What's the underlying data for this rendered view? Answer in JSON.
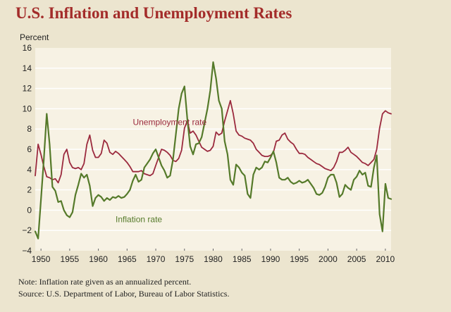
{
  "chart_data": {
    "type": "line",
    "title": "U.S. Inflation and Unemployment Rates",
    "ylabel": "Percent",
    "xlabel": "",
    "xlim": [
      1949,
      2011
    ],
    "ylim": [
      -4,
      16
    ],
    "x_ticks": [
      "1950",
      "1955",
      "1960",
      "1965",
      "1970",
      "1975",
      "1980",
      "1985",
      "1990",
      "1995",
      "2000",
      "2005",
      "2010"
    ],
    "y_ticks": [
      "16",
      "14",
      "12",
      "10",
      "8",
      "6",
      "4",
      "2",
      "0",
      "−2",
      "−4"
    ],
    "grid": "horizontal",
    "series": [
      {
        "name": "Unemployment rate",
        "color": "#9b2a3e",
        "points": [
          [
            1949.0,
            3.4
          ],
          [
            1949.5,
            6.5
          ],
          [
            1950.0,
            5.5
          ],
          [
            1950.5,
            4.3
          ],
          [
            1951.0,
            3.3
          ],
          [
            1951.5,
            3.2
          ],
          [
            1952.0,
            3.0
          ],
          [
            1952.5,
            3.1
          ],
          [
            1953.0,
            2.7
          ],
          [
            1953.5,
            3.5
          ],
          [
            1954.0,
            5.5
          ],
          [
            1954.5,
            6.0
          ],
          [
            1955.0,
            4.7
          ],
          [
            1955.5,
            4.2
          ],
          [
            1956.0,
            4.1
          ],
          [
            1956.5,
            4.2
          ],
          [
            1957.0,
            4.0
          ],
          [
            1957.5,
            4.6
          ],
          [
            1958.0,
            6.5
          ],
          [
            1958.5,
            7.4
          ],
          [
            1959.0,
            5.9
          ],
          [
            1959.5,
            5.2
          ],
          [
            1960.0,
            5.2
          ],
          [
            1960.5,
            5.6
          ],
          [
            1961.0,
            6.9
          ],
          [
            1961.5,
            6.6
          ],
          [
            1962.0,
            5.7
          ],
          [
            1962.5,
            5.5
          ],
          [
            1963.0,
            5.8
          ],
          [
            1963.5,
            5.6
          ],
          [
            1964.0,
            5.3
          ],
          [
            1964.5,
            5.0
          ],
          [
            1965.0,
            4.7
          ],
          [
            1965.5,
            4.3
          ],
          [
            1966.0,
            3.8
          ],
          [
            1966.5,
            3.8
          ],
          [
            1967.0,
            3.8
          ],
          [
            1967.5,
            3.9
          ],
          [
            1968.0,
            3.6
          ],
          [
            1968.5,
            3.5
          ],
          [
            1969.0,
            3.4
          ],
          [
            1969.5,
            3.6
          ],
          [
            1970.0,
            4.4
          ],
          [
            1970.5,
            5.2
          ],
          [
            1971.0,
            6.0
          ],
          [
            1971.5,
            5.9
          ],
          [
            1972.0,
            5.7
          ],
          [
            1972.5,
            5.4
          ],
          [
            1973.0,
            4.9
          ],
          [
            1973.5,
            4.8
          ],
          [
            1974.0,
            5.1
          ],
          [
            1974.5,
            5.9
          ],
          [
            1975.0,
            8.1
          ],
          [
            1975.5,
            8.8
          ],
          [
            1976.0,
            7.6
          ],
          [
            1976.5,
            7.8
          ],
          [
            1977.0,
            7.4
          ],
          [
            1977.5,
            6.8
          ],
          [
            1978.0,
            6.2
          ],
          [
            1978.5,
            6.0
          ],
          [
            1979.0,
            5.8
          ],
          [
            1979.5,
            5.9
          ],
          [
            1980.0,
            6.3
          ],
          [
            1980.5,
            7.7
          ],
          [
            1981.0,
            7.4
          ],
          [
            1981.5,
            7.6
          ],
          [
            1982.0,
            8.8
          ],
          [
            1982.5,
            9.8
          ],
          [
            1983.0,
            10.8
          ],
          [
            1983.5,
            9.5
          ],
          [
            1984.0,
            7.8
          ],
          [
            1984.5,
            7.4
          ],
          [
            1985.0,
            7.3
          ],
          [
            1985.5,
            7.1
          ],
          [
            1986.0,
            7.0
          ],
          [
            1986.5,
            6.9
          ],
          [
            1987.0,
            6.6
          ],
          [
            1987.5,
            6.0
          ],
          [
            1988.0,
            5.7
          ],
          [
            1988.5,
            5.4
          ],
          [
            1989.0,
            5.3
          ],
          [
            1989.5,
            5.3
          ],
          [
            1990.0,
            5.4
          ],
          [
            1990.5,
            5.7
          ],
          [
            1991.0,
            6.8
          ],
          [
            1991.5,
            6.9
          ],
          [
            1992.0,
            7.4
          ],
          [
            1992.5,
            7.6
          ],
          [
            1993.0,
            7.0
          ],
          [
            1993.5,
            6.7
          ],
          [
            1994.0,
            6.5
          ],
          [
            1994.5,
            6.0
          ],
          [
            1995.0,
            5.6
          ],
          [
            1995.5,
            5.6
          ],
          [
            1996.0,
            5.5
          ],
          [
            1996.5,
            5.2
          ],
          [
            1997.0,
            5.0
          ],
          [
            1997.5,
            4.8
          ],
          [
            1998.0,
            4.6
          ],
          [
            1998.5,
            4.5
          ],
          [
            1999.0,
            4.3
          ],
          [
            1999.5,
            4.1
          ],
          [
            2000.0,
            4.0
          ],
          [
            2000.5,
            3.9
          ],
          [
            2001.0,
            4.2
          ],
          [
            2001.5,
            4.8
          ],
          [
            2002.0,
            5.7
          ],
          [
            2002.5,
            5.7
          ],
          [
            2003.0,
            5.9
          ],
          [
            2003.5,
            6.2
          ],
          [
            2004.0,
            5.7
          ],
          [
            2004.5,
            5.5
          ],
          [
            2005.0,
            5.3
          ],
          [
            2005.5,
            5.0
          ],
          [
            2006.0,
            4.7
          ],
          [
            2006.5,
            4.6
          ],
          [
            2007.0,
            4.4
          ],
          [
            2007.5,
            4.7
          ],
          [
            2008.0,
            5.0
          ],
          [
            2008.5,
            6.0
          ],
          [
            2009.0,
            8.1
          ],
          [
            2009.5,
            9.5
          ],
          [
            2010.0,
            9.8
          ],
          [
            2010.5,
            9.6
          ],
          [
            2011.0,
            9.5
          ]
        ]
      },
      {
        "name": "Inflation rate",
        "color": "#557a2a",
        "points": [
          [
            1949.0,
            -2.1
          ],
          [
            1949.5,
            -2.8
          ],
          [
            1950.0,
            1.0
          ],
          [
            1950.5,
            5.0
          ],
          [
            1951.0,
            9.5
          ],
          [
            1951.5,
            6.5
          ],
          [
            1952.0,
            2.3
          ],
          [
            1952.5,
            1.9
          ],
          [
            1953.0,
            0.8
          ],
          [
            1953.5,
            0.9
          ],
          [
            1954.0,
            0.0
          ],
          [
            1954.5,
            -0.5
          ],
          [
            1955.0,
            -0.7
          ],
          [
            1955.5,
            -0.2
          ],
          [
            1956.0,
            1.5
          ],
          [
            1956.5,
            2.5
          ],
          [
            1957.0,
            3.6
          ],
          [
            1957.5,
            3.2
          ],
          [
            1958.0,
            3.5
          ],
          [
            1958.5,
            2.4
          ],
          [
            1959.0,
            0.4
          ],
          [
            1959.5,
            1.2
          ],
          [
            1960.0,
            1.5
          ],
          [
            1960.5,
            1.3
          ],
          [
            1961.0,
            0.9
          ],
          [
            1961.5,
            1.2
          ],
          [
            1962.0,
            1.0
          ],
          [
            1962.5,
            1.3
          ],
          [
            1963.0,
            1.2
          ],
          [
            1963.5,
            1.4
          ],
          [
            1964.0,
            1.2
          ],
          [
            1964.5,
            1.3
          ],
          [
            1965.0,
            1.6
          ],
          [
            1965.5,
            2.0
          ],
          [
            1966.0,
            2.9
          ],
          [
            1966.5,
            3.5
          ],
          [
            1967.0,
            2.8
          ],
          [
            1967.5,
            3.0
          ],
          [
            1968.0,
            4.2
          ],
          [
            1968.5,
            4.6
          ],
          [
            1969.0,
            5.0
          ],
          [
            1969.5,
            5.6
          ],
          [
            1970.0,
            6.0
          ],
          [
            1970.5,
            5.2
          ],
          [
            1971.0,
            4.4
          ],
          [
            1971.5,
            3.9
          ],
          [
            1972.0,
            3.2
          ],
          [
            1972.5,
            3.4
          ],
          [
            1973.0,
            5.0
          ],
          [
            1973.5,
            7.5
          ],
          [
            1974.0,
            10.0
          ],
          [
            1974.5,
            11.5
          ],
          [
            1975.0,
            12.2
          ],
          [
            1975.5,
            9.0
          ],
          [
            1976.0,
            6.3
          ],
          [
            1976.5,
            5.5
          ],
          [
            1977.0,
            6.5
          ],
          [
            1977.5,
            6.6
          ],
          [
            1978.0,
            7.2
          ],
          [
            1978.5,
            8.6
          ],
          [
            1979.0,
            10.0
          ],
          [
            1979.5,
            11.8
          ],
          [
            1980.0,
            14.6
          ],
          [
            1980.5,
            13.0
          ],
          [
            1981.0,
            10.8
          ],
          [
            1981.5,
            10.0
          ],
          [
            1982.0,
            6.8
          ],
          [
            1982.5,
            5.5
          ],
          [
            1983.0,
            3.0
          ],
          [
            1983.5,
            2.5
          ],
          [
            1984.0,
            4.5
          ],
          [
            1984.5,
            4.2
          ],
          [
            1985.0,
            3.7
          ],
          [
            1985.5,
            3.4
          ],
          [
            1986.0,
            1.6
          ],
          [
            1986.5,
            1.2
          ],
          [
            1987.0,
            3.5
          ],
          [
            1987.5,
            4.2
          ],
          [
            1988.0,
            4.0
          ],
          [
            1988.5,
            4.2
          ],
          [
            1989.0,
            4.8
          ],
          [
            1989.5,
            4.7
          ],
          [
            1990.0,
            5.2
          ],
          [
            1990.5,
            5.8
          ],
          [
            1991.0,
            4.7
          ],
          [
            1991.5,
            3.2
          ],
          [
            1992.0,
            3.0
          ],
          [
            1992.5,
            3.0
          ],
          [
            1993.0,
            3.2
          ],
          [
            1993.5,
            2.8
          ],
          [
            1994.0,
            2.6
          ],
          [
            1994.5,
            2.7
          ],
          [
            1995.0,
            2.9
          ],
          [
            1995.5,
            2.7
          ],
          [
            1996.0,
            2.8
          ],
          [
            1996.5,
            3.0
          ],
          [
            1997.0,
            2.6
          ],
          [
            1997.5,
            2.2
          ],
          [
            1998.0,
            1.6
          ],
          [
            1998.5,
            1.5
          ],
          [
            1999.0,
            1.7
          ],
          [
            1999.5,
            2.3
          ],
          [
            2000.0,
            3.2
          ],
          [
            2000.5,
            3.5
          ],
          [
            2001.0,
            3.5
          ],
          [
            2001.5,
            2.7
          ],
          [
            2002.0,
            1.3
          ],
          [
            2002.5,
            1.6
          ],
          [
            2003.0,
            2.5
          ],
          [
            2003.5,
            2.2
          ],
          [
            2004.0,
            2.0
          ],
          [
            2004.5,
            3.0
          ],
          [
            2005.0,
            3.3
          ],
          [
            2005.5,
            3.9
          ],
          [
            2006.0,
            3.5
          ],
          [
            2006.5,
            3.7
          ],
          [
            2007.0,
            2.4
          ],
          [
            2007.5,
            2.3
          ],
          [
            2008.0,
            4.2
          ],
          [
            2008.5,
            5.4
          ],
          [
            2009.0,
            -0.4
          ],
          [
            2009.5,
            -2.1
          ],
          [
            2010.0,
            2.6
          ],
          [
            2010.5,
            1.2
          ],
          [
            2011.0,
            1.1
          ]
        ]
      }
    ],
    "annotations": [
      {
        "text": "Unemployment rate",
        "x": 1966.0,
        "y": 8.4,
        "series": 0
      },
      {
        "text": "Inflation rate",
        "x": 1963.0,
        "y": -1.2,
        "series": 1
      }
    ]
  },
  "notes": {
    "line1": "Note: Inflation rate given as an annualized percent.",
    "line2": "Source: U.S. Department of Labor, Bureau of Labor Statistics."
  }
}
